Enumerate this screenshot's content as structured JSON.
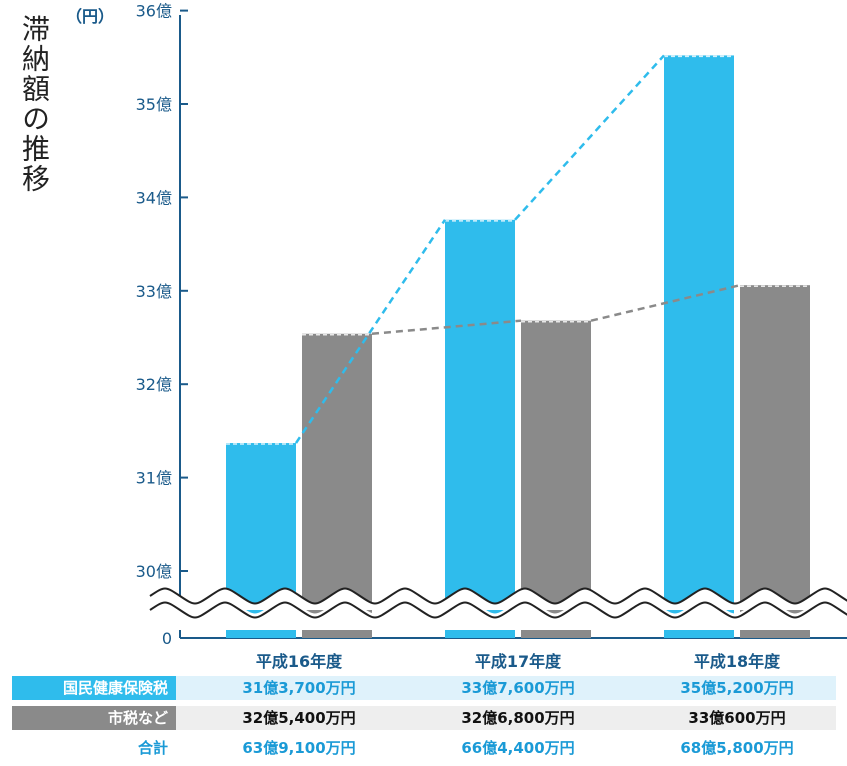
{
  "title": "滞納額の推移",
  "unit": "（円）",
  "chart_data": {
    "type": "bar",
    "categories": [
      "平成16年度",
      "平成17年度",
      "平成18年度"
    ],
    "series": [
      {
        "name": "国民健康保険税",
        "values": [
          31.37,
          33.76,
          35.52
        ],
        "color": "#2fbcec"
      },
      {
        "name": "市税など",
        "values": [
          32.54,
          32.68,
          33.06
        ],
        "color": "#8a8a8a"
      }
    ],
    "y_ticks": [
      "0",
      "30億",
      "31億",
      "32億",
      "33億",
      "34億",
      "35億",
      "36億"
    ],
    "y_axis_break": true,
    "ylim": [
      30,
      36
    ],
    "ylabel_unit": "（円）",
    "axis_color": "#1a5a8a"
  },
  "table": {
    "rows": [
      {
        "label": "国民健康保険税",
        "values": [
          "31億3,700万円",
          "33億7,600万円",
          "35億5,200万円"
        ],
        "label_bg": "#2fbcec",
        "row_bg": "#dff2fb",
        "text_color": "#1a9ad6"
      },
      {
        "label": "市税など",
        "values": [
          "32億5,400万円",
          "32億6,800万円",
          "33億600万円"
        ],
        "label_bg": "#8a8a8a",
        "row_bg": "#eeeeee",
        "text_color": "#111111"
      },
      {
        "label": "合計",
        "values": [
          "63億9,100万円",
          "66億4,400万円",
          "68億5,800万円"
        ],
        "label_bg": "",
        "row_bg": "",
        "text_color": "#1a9ad6"
      }
    ]
  }
}
